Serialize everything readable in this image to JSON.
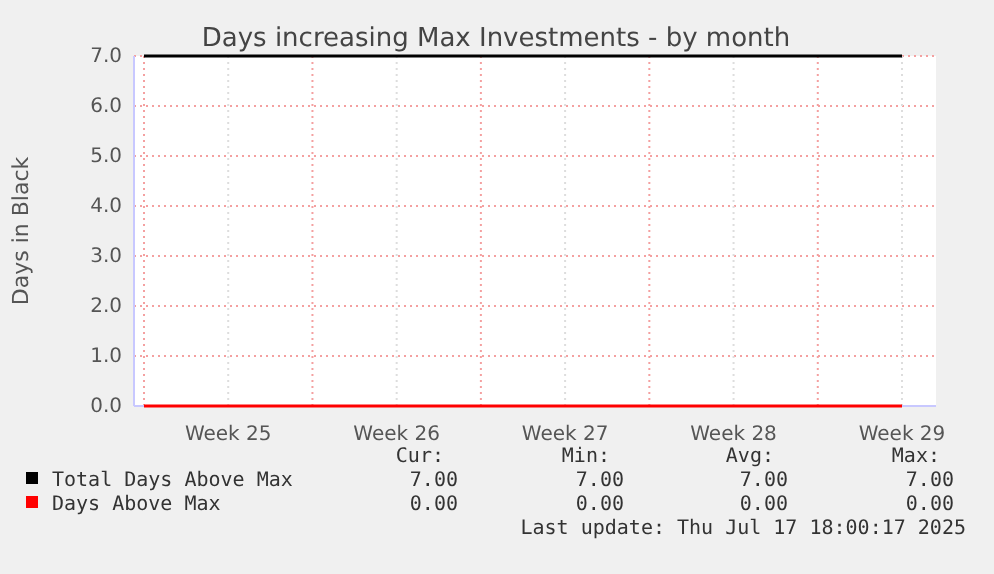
{
  "chart_data": {
    "type": "line",
    "title": "Days increasing Max Investments - by month",
    "ylabel": "Days in Black",
    "categories": [
      null,
      "Week 25",
      null,
      "Week 26",
      null,
      "Week 27",
      null,
      "Week 28",
      null,
      "Week 29"
    ],
    "series": [
      {
        "name": "Total Days Above Max",
        "color": "#000000",
        "values": [
          7,
          7,
          7,
          7,
          7,
          7,
          7,
          7,
          7,
          7
        ]
      },
      {
        "name": "Days Above Max",
        "color": "#ff0000",
        "values": [
          0,
          0,
          0,
          0,
          0,
          0,
          0,
          0,
          0,
          0
        ]
      }
    ],
    "ylim": [
      0,
      7
    ],
    "yticks": [
      {
        "value": 0,
        "label": "0.0"
      },
      {
        "value": 1,
        "label": "1.0"
      },
      {
        "value": 2,
        "label": "2.0"
      },
      {
        "value": 3,
        "label": "3.0"
      },
      {
        "value": 4,
        "label": "4.0"
      },
      {
        "value": 5,
        "label": "5.0"
      },
      {
        "value": 6,
        "label": "6.0"
      },
      {
        "value": 7,
        "label": "7.0"
      }
    ],
    "grid": true,
    "legend": "bottom",
    "annotations": [
      "Cur:",
      "Min:",
      "Avg:",
      "Max:",
      "7.00",
      "7.00",
      "7.00",
      "7.00",
      "0.00",
      "0.00",
      "0.00",
      "0.00",
      "Last update: Thu Jul 17 18:00:17 2025"
    ]
  }
}
